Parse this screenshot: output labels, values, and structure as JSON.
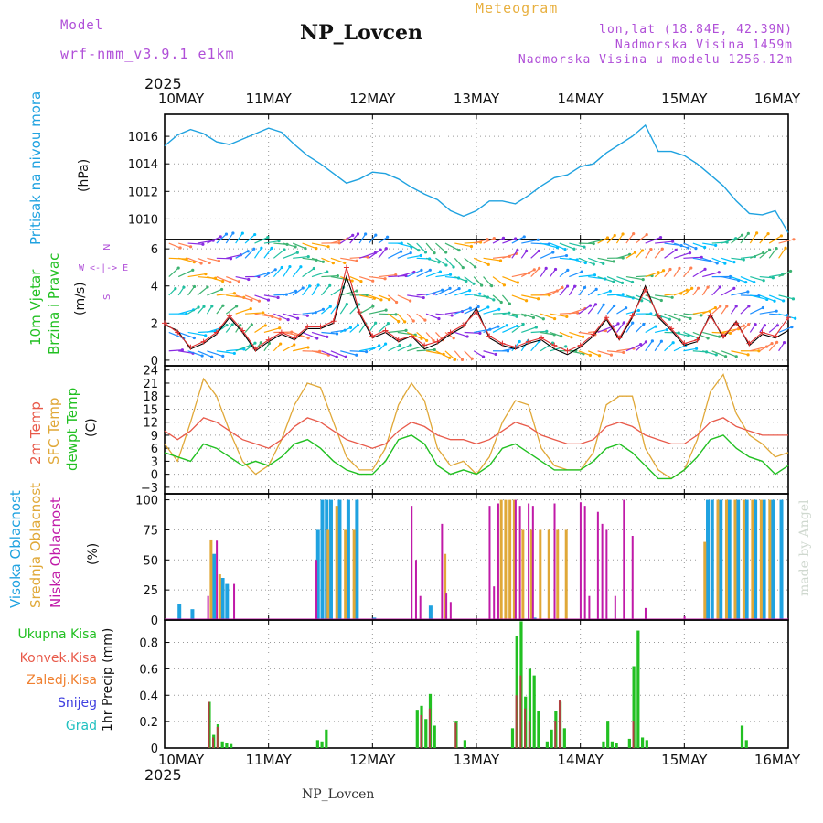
{
  "header": {
    "model_label": "Model",
    "model_name": "wrf-nmm_v3.9.1  e1km",
    "product": "Meteogram",
    "title": "NP_Lovcen",
    "lonlat": "lon,lat (18.84E, 42.39N)",
    "elevation": "Nadmorska Visina 1459m",
    "model_elevation": "Nadmorska Visina u modelu 1256.12m",
    "footer_title": "NP_Lovcen",
    "watermark": "made by Angel"
  },
  "time_axis": {
    "year": "2025",
    "labels": [
      "10MAY",
      "11MAY",
      "12MAY",
      "13MAY",
      "14MAY",
      "15MAY",
      "16MAY"
    ]
  },
  "panel_labels": {
    "pressure": [
      "Pritisak na nivou mora",
      "(hPa)"
    ],
    "wind": [
      "10m Vjetar",
      "Brzina i Pravac",
      "(m/s)"
    ],
    "wind_compass": [
      "N",
      "W <-|-> E",
      "S"
    ],
    "temp": [
      "2m Temp",
      "SFC Temp",
      "dewpt Temp",
      "(C)"
    ],
    "cloud": [
      "Visoka Oblacnost",
      "Srednja Oblacnost",
      "Niska Oblacnost",
      "(%)"
    ],
    "precip_legend": [
      "Ukupna Kisa",
      "Konvek.Kisa",
      "Zaledj.Kisa",
      "Snijeg",
      "Grad"
    ],
    "precip_unit": "1hr Precip (mm)"
  },
  "colors": {
    "pressure": "#1fa2e0",
    "temp2m": "#e85a4a",
    "sfc": "#e0a838",
    "dewpt": "#22c022",
    "high_cloud": "#1fa2e0",
    "mid_cloud": "#e0a838",
    "low_cloud": "#c01aa8",
    "total_precip": "#22c022",
    "conv_precip": "#b04040",
    "frz": "#f08030",
    "snow": "#4040e0",
    "hail": "#20c0c0",
    "purple_text": "#b04fd8"
  },
  "chart_data": [
    {
      "type": "line",
      "name": "pressure",
      "ylim": [
        1008.5,
        1017.6
      ],
      "yticks": [
        1010,
        1012,
        1014,
        1016
      ],
      "x": [
        0,
        3,
        6,
        9,
        12,
        15,
        18,
        21,
        24,
        27,
        30,
        33,
        36,
        39,
        42,
        45,
        48,
        51,
        54,
        57,
        60,
        63,
        66,
        69,
        72,
        75,
        78,
        81,
        84,
        87,
        90,
        93,
        96,
        99,
        102,
        105,
        108,
        111,
        114,
        117,
        120,
        123,
        126,
        129,
        132,
        135,
        138,
        141,
        144
      ],
      "values": [
        1015.3,
        1016.1,
        1016.5,
        1016.2,
        1015.6,
        1015.4,
        1015.8,
        1016.2,
        1016.6,
        1016.3,
        1015.4,
        1014.6,
        1014.0,
        1013.3,
        1012.6,
        1012.9,
        1013.4,
        1013.3,
        1012.9,
        1012.3,
        1011.8,
        1011.4,
        1010.6,
        1010.2,
        1010.6,
        1011.3,
        1011.3,
        1011.1,
        1011.7,
        1012.4,
        1013.0,
        1013.2,
        1013.8,
        1014.0,
        1014.8,
        1015.4,
        1016.0,
        1016.8,
        1014.9,
        1014.9,
        1014.6,
        1014.0,
        1013.2,
        1012.4,
        1011.3,
        1010.4,
        1010.3,
        1010.6,
        1009.0
      ]
    },
    {
      "type": "line",
      "name": "wind_speed",
      "ylim": [
        -0.3,
        6.5
      ],
      "yticks": [
        0,
        2,
        4,
        6
      ],
      "x": [
        0,
        3,
        6,
        9,
        12,
        15,
        18,
        21,
        24,
        27,
        30,
        33,
        36,
        39,
        42,
        45,
        48,
        51,
        54,
        57,
        60,
        63,
        66,
        69,
        72,
        75,
        78,
        81,
        84,
        87,
        90,
        93,
        96,
        99,
        102,
        105,
        108,
        111,
        114,
        117,
        120,
        123,
        126,
        129,
        132,
        135,
        138,
        141,
        144
      ],
      "series": [
        {
          "values": [
            1.9,
            1.6,
            0.6,
            0.9,
            1.4,
            2.3,
            1.5,
            0.5,
            1.0,
            1.4,
            1.1,
            1.7,
            1.7,
            2.0,
            4.5,
            2.5,
            1.2,
            1.5,
            1.0,
            1.3,
            0.6,
            0.9,
            1.4,
            1.8,
            2.8,
            1.2,
            0.8,
            0.6,
            0.9,
            1.1,
            0.6,
            0.3,
            0.7,
            1.3,
            2.2,
            1.1,
            2.3,
            4.0,
            2.3,
            1.6,
            0.8,
            1.0,
            2.5,
            1.2,
            2.1,
            0.8,
            1.4,
            1.2,
            1.6
          ]
        },
        {
          "values": [
            2.0,
            1.5,
            0.7,
            1.0,
            1.5,
            2.4,
            1.6,
            0.6,
            1.1,
            1.5,
            1.2,
            1.8,
            1.8,
            2.1,
            5.0,
            2.6,
            1.3,
            1.6,
            1.1,
            1.3,
            0.8,
            1.0,
            1.5,
            1.9,
            2.6,
            1.3,
            0.9,
            0.7,
            1.0,
            1.2,
            0.8,
            0.5,
            0.8,
            1.4,
            2.3,
            1.2,
            2.4,
            3.8,
            2.4,
            1.7,
            0.9,
            1.1,
            2.4,
            1.3,
            2.0,
            0.9,
            1.5,
            1.3,
            2.3
          ]
        }
      ]
    },
    {
      "type": "line",
      "name": "temperature",
      "ylim": [
        -4.5,
        25
      ],
      "yticks": [
        -3,
        0,
        3,
        6,
        9,
        12,
        15,
        18,
        21,
        24
      ],
      "x": [
        0,
        3,
        6,
        9,
        12,
        15,
        18,
        21,
        24,
        27,
        30,
        33,
        36,
        39,
        42,
        45,
        48,
        51,
        54,
        57,
        60,
        63,
        66,
        69,
        72,
        75,
        78,
        81,
        84,
        87,
        90,
        93,
        96,
        99,
        102,
        105,
        108,
        111,
        114,
        117,
        120,
        123,
        126,
        129,
        132,
        135,
        138,
        141,
        144
      ],
      "series": [
        {
          "name": "2m Temp",
          "values": [
            10,
            8,
            10,
            13,
            12,
            10,
            8,
            7,
            6,
            8,
            11,
            13,
            12,
            10,
            8,
            7,
            6,
            7,
            10,
            12,
            11,
            9,
            8,
            8,
            7,
            8,
            10,
            12,
            11,
            9,
            8,
            7,
            7,
            8,
            11,
            12,
            11,
            9,
            8,
            7,
            7,
            9,
            12,
            13,
            11,
            10,
            9,
            9,
            9
          ]
        },
        {
          "name": "SFC Temp",
          "values": [
            7,
            3,
            12,
            22,
            18,
            10,
            3,
            0,
            2,
            8,
            16,
            21,
            20,
            12,
            4,
            1,
            1,
            6,
            16,
            21,
            17,
            6,
            2,
            3,
            0,
            4,
            12,
            17,
            16,
            6,
            2,
            1,
            1,
            5,
            16,
            18,
            18,
            6,
            1,
            -1,
            1,
            8,
            19,
            23,
            14,
            9,
            7,
            4,
            5
          ]
        },
        {
          "name": "dewpt Temp",
          "values": [
            5,
            4,
            3,
            7,
            6,
            4,
            2,
            3,
            2,
            4,
            7,
            8,
            6,
            3,
            1,
            0,
            0,
            3,
            8,
            9,
            7,
            2,
            0,
            1,
            0,
            2,
            6,
            7,
            5,
            3,
            1,
            1,
            1,
            3,
            6,
            7,
            5,
            2,
            -1,
            -1,
            1,
            4,
            8,
            9,
            6,
            4,
            3,
            0,
            2
          ]
        }
      ]
    },
    {
      "type": "bar",
      "name": "cloud_cover",
      "ylim": [
        0,
        105
      ],
      "yticks": [
        0,
        25,
        50,
        75,
        100
      ],
      "series": [
        {
          "name": "Visoka Oblacnost",
          "bars": [
            [
              3,
              13
            ],
            [
              6,
              9
            ],
            [
              11,
              55
            ],
            [
              13,
              35
            ],
            [
              14,
              30
            ],
            [
              35,
              75
            ],
            [
              36,
              100
            ],
            [
              37,
              100
            ],
            [
              38,
              100
            ],
            [
              40,
              100
            ],
            [
              42,
              100
            ],
            [
              44,
              100
            ],
            [
              48,
              2
            ],
            [
              61,
              12
            ],
            [
              85,
              2
            ],
            [
              125,
              100
            ],
            [
              126,
              100
            ],
            [
              128,
              100
            ],
            [
              130,
              100
            ],
            [
              132,
              100
            ],
            [
              134,
              100
            ],
            [
              136,
              100
            ],
            [
              138,
              100
            ],
            [
              140,
              100
            ],
            [
              142,
              100
            ]
          ]
        },
        {
          "name": "Srednja Oblacnost",
          "bars": [
            [
              10,
              67
            ],
            [
              12,
              38
            ],
            [
              37,
              75
            ],
            [
              39,
              95
            ],
            [
              41,
              75
            ],
            [
              43,
              75
            ],
            [
              64,
              55
            ],
            [
              77,
              100
            ],
            [
              78,
              100
            ],
            [
              79,
              100
            ],
            [
              80,
              100
            ],
            [
              82,
              75
            ],
            [
              84,
              75
            ],
            [
              86,
              75
            ],
            [
              88,
              75
            ],
            [
              90,
              75
            ],
            [
              92,
              75
            ],
            [
              124,
              65
            ],
            [
              127,
              100
            ],
            [
              129,
              100
            ],
            [
              131,
              100
            ],
            [
              133,
              100
            ],
            [
              135,
              100
            ],
            [
              137,
              100
            ],
            [
              139,
              100
            ]
          ]
        },
        {
          "name": "Niska Oblacnost",
          "bars": [
            [
              9,
              20
            ],
            [
              11,
              66
            ],
            [
              15,
              30
            ],
            [
              34,
              50
            ],
            [
              56,
              95
            ],
            [
              57,
              50
            ],
            [
              58,
              20
            ],
            [
              63,
              80
            ],
            [
              64,
              22
            ],
            [
              65,
              15
            ],
            [
              74,
              95
            ],
            [
              75,
              28
            ],
            [
              76,
              97
            ],
            [
              80,
              100
            ],
            [
              81,
              95
            ],
            [
              83,
              97
            ],
            [
              84,
              95
            ],
            [
              89,
              97
            ],
            [
              95,
              98
            ],
            [
              96,
              95
            ],
            [
              97,
              20
            ],
            [
              99,
              90
            ],
            [
              100,
              80
            ],
            [
              101,
              75
            ],
            [
              103,
              20
            ],
            [
              105,
              100
            ],
            [
              107,
              70
            ],
            [
              110,
              10
            ],
            [
              119,
              3
            ]
          ]
        }
      ]
    },
    {
      "type": "bar",
      "name": "precipitation",
      "ylim": [
        0,
        0.97
      ],
      "yticks": [
        0,
        0.2,
        0.4,
        0.6,
        0.8
      ],
      "series": [
        {
          "name": "Ukupna Kisa",
          "bars": [
            [
              10,
              0.35
            ],
            [
              11,
              0.1
            ],
            [
              12,
              0.18
            ],
            [
              13,
              0.05
            ],
            [
              14,
              0.04
            ],
            [
              15,
              0.03
            ],
            [
              35,
              0.06
            ],
            [
              36,
              0.05
            ],
            [
              37,
              0.14
            ],
            [
              58,
              0.29
            ],
            [
              59,
              0.32
            ],
            [
              60,
              0.22
            ],
            [
              61,
              0.41
            ],
            [
              62,
              0.17
            ],
            [
              67,
              0.2
            ],
            [
              69,
              0.06
            ],
            [
              80,
              0.15
            ],
            [
              81,
              0.85
            ],
            [
              82,
              0.96
            ],
            [
              83,
              0.39
            ],
            [
              84,
              0.6
            ],
            [
              85,
              0.55
            ],
            [
              86,
              0.28
            ],
            [
              88,
              0.05
            ],
            [
              89,
              0.14
            ],
            [
              90,
              0.28
            ],
            [
              91,
              0.35
            ],
            [
              92,
              0.15
            ],
            [
              101,
              0.05
            ],
            [
              102,
              0.2
            ],
            [
              103,
              0.05
            ],
            [
              104,
              0.04
            ],
            [
              107,
              0.07
            ],
            [
              108,
              0.62
            ],
            [
              109,
              0.89
            ],
            [
              110,
              0.08
            ],
            [
              111,
              0.06
            ],
            [
              133,
              0.17
            ],
            [
              134,
              0.06
            ]
          ]
        },
        {
          "name": "Konvek.Kisa",
          "bars": [
            [
              10,
              0.35
            ],
            [
              11,
              0.08
            ],
            [
              12,
              0.16
            ],
            [
              59,
              0.25
            ],
            [
              61,
              0.3
            ],
            [
              67,
              0.19
            ],
            [
              81,
              0.4
            ],
            [
              82,
              0.55
            ],
            [
              83,
              0.3
            ],
            [
              84,
              0.2
            ],
            [
              90,
              0.2
            ],
            [
              91,
              0.36
            ],
            [
              108,
              0.2
            ]
          ]
        }
      ]
    }
  ]
}
